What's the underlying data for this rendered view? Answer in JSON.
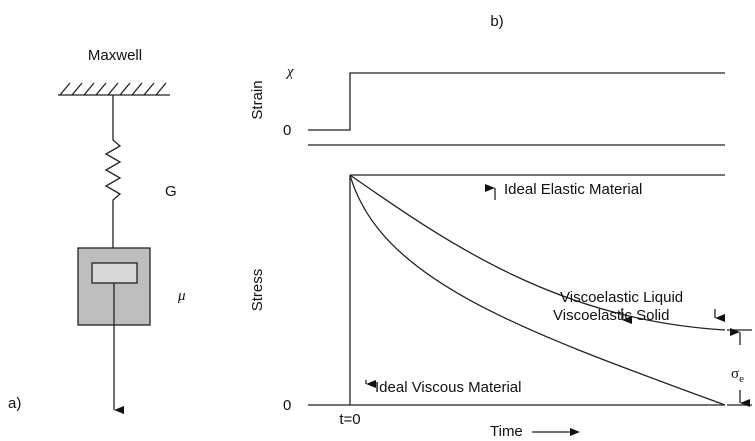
{
  "panel_a": {
    "label": "a)",
    "title": "Maxwell",
    "spring": "G",
    "dashpot": "μ"
  },
  "panel_b": {
    "label": "b)",
    "strain": {
      "axis": "Strain",
      "level": "χ",
      "zero": "0"
    },
    "stress": {
      "axis": "Stress",
      "zero": "0",
      "time_zero": "t=0",
      "time": "Time",
      "curves": [
        "Ideal Elastic Material",
        "Viscoelastic Solid",
        "Viscoelastic Liquid",
        "Ideal Viscous Material"
      ],
      "sigma": "σ",
      "sigma_sub": "e"
    }
  }
}
